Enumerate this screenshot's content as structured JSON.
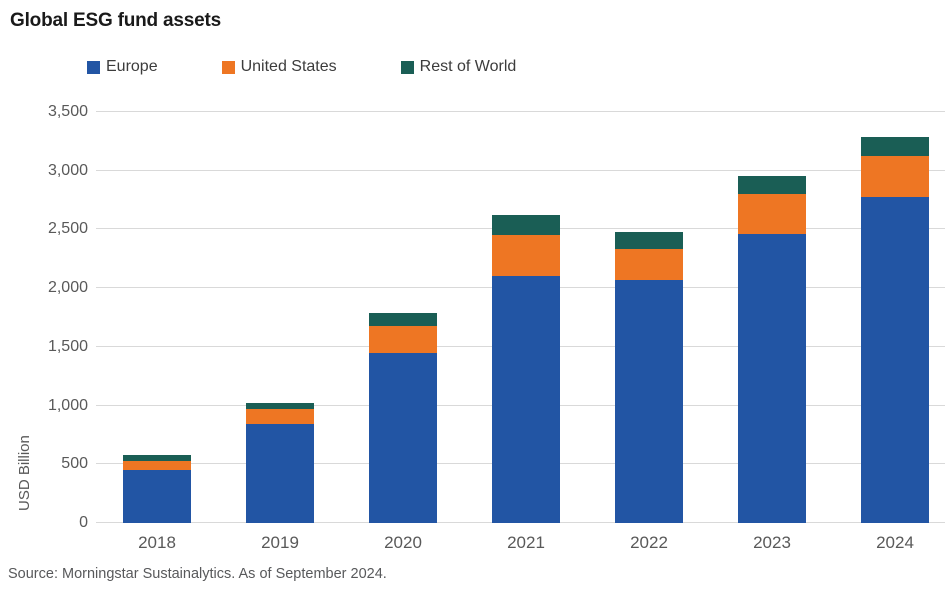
{
  "title": "Global ESG fund assets",
  "source": "Source: Morningstar Sustainalytics. As of September 2024.",
  "colors": {
    "europe": "#2255a4",
    "united_states": "#ee7623",
    "rest_of_world": "#1a5e55",
    "grid": "#d9d9d9",
    "axis_text": "#595959",
    "title_text": "#1a1a1a"
  },
  "legend": [
    {
      "label": "Europe",
      "color": "#2255a4"
    },
    {
      "label": "United States",
      "color": "#ee7623"
    },
    {
      "label": "Rest of World",
      "color": "#1a5e55"
    }
  ],
  "chart_data": {
    "type": "bar",
    "stacked": true,
    "title": "Global ESG fund assets",
    "xlabel": "",
    "ylabel": "USD Billion",
    "categories": [
      "2018",
      "2019",
      "2020",
      "2021",
      "2022",
      "2023",
      "2024"
    ],
    "series": [
      {
        "name": "Europe",
        "color": "#2255a4",
        "values": [
          450,
          840,
          1450,
          2100,
          2070,
          2465,
          2780
        ]
      },
      {
        "name": "United States",
        "color": "#ee7623",
        "values": [
          80,
          130,
          230,
          355,
          260,
          340,
          345
        ]
      },
      {
        "name": "Rest of World",
        "color": "#1a5e55",
        "values": [
          50,
          55,
          110,
          170,
          150,
          150,
          165
        ]
      }
    ],
    "totals": [
      580,
      1025,
      1790,
      2625,
      2480,
      2955,
      3290
    ],
    "ylim": [
      0,
      3500
    ],
    "yticks": [
      0,
      500,
      1000,
      1500,
      2000,
      2500,
      3000,
      3500
    ],
    "ytick_labels": [
      "0",
      "500",
      "1,000",
      "1,500",
      "2,000",
      "2,500",
      "3,000",
      "3,500"
    ],
    "grid": true,
    "legend_position": "top"
  }
}
